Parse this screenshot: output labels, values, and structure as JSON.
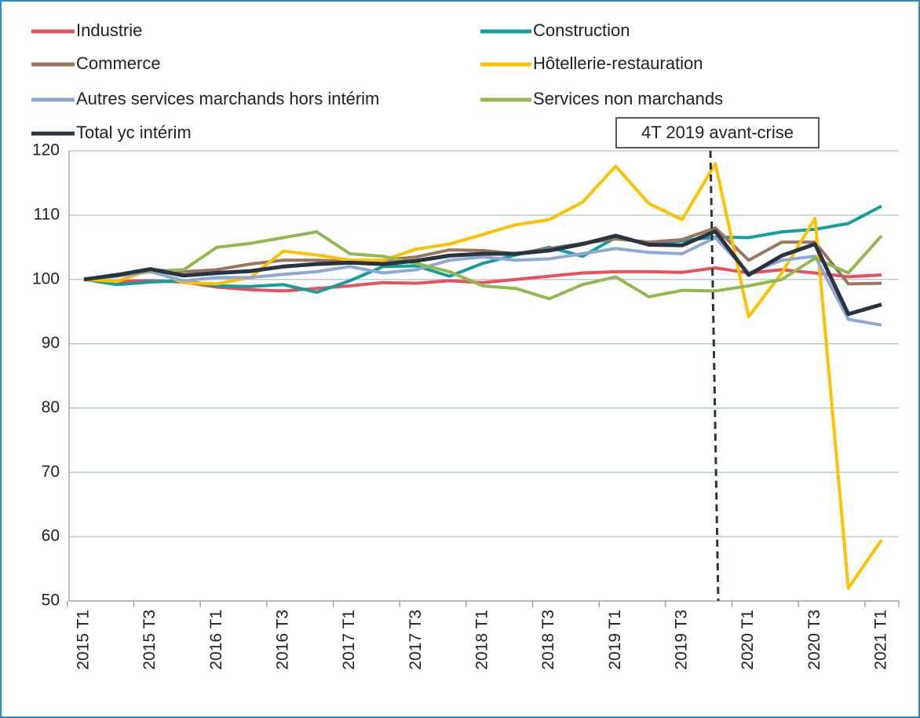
{
  "chart_data": {
    "type": "line",
    "categories": [
      "2015 T1",
      null,
      "2015 T3",
      null,
      "2016 T1",
      null,
      "2016 T3",
      null,
      "2017 T1",
      null,
      "2017 T3",
      null,
      "2018 T1",
      null,
      "2018 T3",
      null,
      "2019 T1",
      null,
      "2019 T3",
      null,
      "2020 T1",
      null,
      "2020 T3",
      null,
      "2021 T1"
    ],
    "series": [
      {
        "name": "Industrie",
        "color": "#e6505f",
        "values": [
          100,
          99.7,
          99.8,
          99.6,
          98.8,
          98.4,
          98.2,
          98.6,
          99.0,
          99.5,
          99.4,
          99.8,
          99.5,
          100.0,
          100.5,
          101.0,
          101.2,
          101.2,
          101.1,
          101.8,
          101.0,
          101.5,
          101.0,
          100.4,
          100.7
        ]
      },
      {
        "name": "Construction",
        "color": "#149e9e",
        "values": [
          100,
          99.2,
          99.6,
          99.8,
          99.0,
          98.9,
          99.2,
          98.0,
          99.8,
          102.0,
          102.1,
          100.5,
          102.5,
          103.8,
          105.0,
          103.6,
          106.5,
          105.6,
          106.0,
          106.6,
          106.5,
          107.4,
          107.8,
          108.7,
          111.4
        ]
      },
      {
        "name": "Commerce",
        "color": "#9a7560",
        "values": [
          100,
          100.5,
          101.5,
          101.2,
          101.5,
          102.4,
          103.0,
          103.0,
          102.8,
          103.0,
          103.5,
          104.6,
          104.5,
          104.0,
          104.8,
          105.6,
          106.3,
          105.8,
          106.2,
          108.0,
          103.0,
          105.8,
          105.8,
          99.3,
          99.4
        ]
      },
      {
        "name": "Hôtellerie-restauration",
        "color": "#ffc000",
        "values": [
          100,
          99.7,
          101.5,
          99.5,
          99.3,
          100.3,
          104.4,
          103.8,
          103.0,
          103.0,
          104.7,
          105.5,
          107.0,
          108.5,
          109.3,
          112.0,
          117.6,
          111.8,
          109.3,
          118.0,
          94.2,
          101.0,
          109.5,
          52.0,
          59.5
        ]
      },
      {
        "name": "Autres services marchands hors intérim",
        "color": "#8fa8d4",
        "values": [
          100,
          100.5,
          101.2,
          99.8,
          100.3,
          100.3,
          100.8,
          101.2,
          102.0,
          101.0,
          101.5,
          103.0,
          103.5,
          103.0,
          103.2,
          104.0,
          104.8,
          104.2,
          104.0,
          106.5,
          101.0,
          103.0,
          103.6,
          93.8,
          92.9
        ]
      },
      {
        "name": "Services non marchands",
        "color": "#92b94f",
        "values": [
          100,
          100.8,
          101.3,
          101.5,
          105.0,
          105.6,
          106.5,
          107.4,
          104.0,
          103.6,
          102.5,
          101.2,
          99.0,
          98.6,
          97.0,
          99.2,
          100.4,
          97.3,
          98.3,
          98.2,
          99.0,
          100.0,
          103.3,
          101.0,
          106.8
        ]
      },
      {
        "name": "Total yc intérim",
        "color": "#2a3342",
        "values": [
          100,
          100.7,
          101.6,
          100.6,
          101.0,
          101.3,
          102.0,
          102.4,
          102.6,
          102.4,
          102.9,
          103.7,
          104.0,
          104.0,
          104.5,
          105.5,
          106.8,
          105.4,
          105.3,
          107.5,
          100.7,
          103.7,
          105.5,
          94.6,
          96.1
        ]
      }
    ],
    "ylim": [
      50,
      120
    ],
    "yticks": [
      50,
      60,
      70,
      80,
      90,
      100,
      110,
      120
    ],
    "grid": true,
    "annotations": [
      "4T 2019 avant-crise"
    ]
  }
}
